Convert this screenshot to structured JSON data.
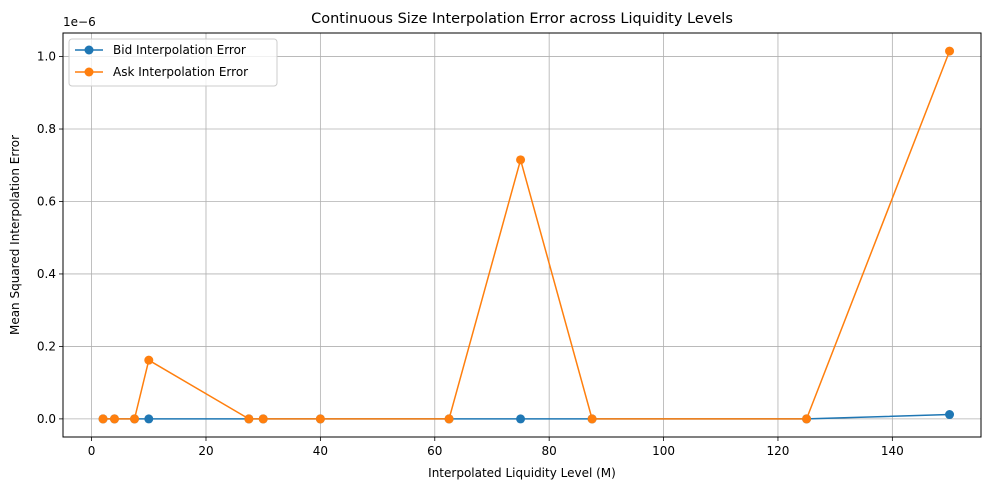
{
  "chart_data": {
    "type": "line",
    "title": "Continuous Size Interpolation Error across Liquidity Levels",
    "xlabel": "Interpolated Liquidity Level (M)",
    "ylabel": "Mean Squared Interpolation Error",
    "y_offset_label": "1e−6",
    "xlim": [
      -5,
      155.5
    ],
    "ylim": [
      -0.05,
      1.065
    ],
    "x_ticks": [
      0,
      20,
      40,
      60,
      80,
      100,
      120,
      140
    ],
    "y_ticks": [
      0.0,
      0.2,
      0.4,
      0.6,
      0.8,
      1.0
    ],
    "x_tick_labels": [
      "0",
      "20",
      "40",
      "60",
      "80",
      "100",
      "120",
      "140"
    ],
    "y_tick_labels": [
      "0.0",
      "0.2",
      "0.4",
      "0.6",
      "0.8",
      "1.0"
    ],
    "grid": true,
    "legend_position": "top-left",
    "series": [
      {
        "name": "Bid Interpolation Error",
        "color": "#1f77b4",
        "x": [
          2,
          4,
          7.5,
          10,
          27.5,
          30,
          40,
          62.5,
          75,
          87.5,
          125,
          150
        ],
        "y": [
          0.0,
          0.0,
          0.0,
          0.0,
          0.0,
          0.0,
          0.0,
          0.0,
          0.0,
          0.0,
          0.0,
          0.012
        ]
      },
      {
        "name": "Ask Interpolation Error",
        "color": "#ff7f0e",
        "x": [
          2,
          4,
          7.5,
          10,
          27.5,
          30,
          40,
          62.5,
          75,
          87.5,
          125,
          150
        ],
        "y": [
          0.0,
          0.0,
          0.0,
          0.162,
          0.0,
          0.0,
          0.0,
          0.0,
          0.715,
          0.0,
          0.0,
          1.015
        ]
      }
    ]
  }
}
